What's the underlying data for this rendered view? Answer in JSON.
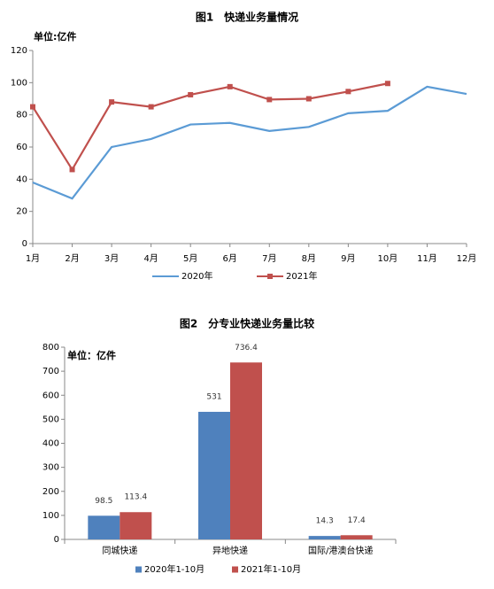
{
  "chart_data": [
    {
      "type": "line",
      "title": "图1　快递业务量情况",
      "unit_label": "单位:亿件",
      "categories": [
        "1月",
        "2月",
        "3月",
        "4月",
        "5月",
        "6月",
        "7月",
        "8月",
        "9月",
        "10月",
        "11月",
        "12月"
      ],
      "series": [
        {
          "name": "2020年",
          "color": "#5b9bd5",
          "marker": "none",
          "values": [
            38,
            28,
            60,
            65,
            74,
            75,
            70,
            72.5,
            81,
            82.5,
            97.5,
            93
          ]
        },
        {
          "name": "2021年",
          "color": "#c0504d",
          "marker": "square",
          "values": [
            85,
            46,
            88,
            85,
            92.5,
            97.5,
            89.5,
            90,
            94.5,
            99.5,
            null,
            null
          ]
        }
      ],
      "ylim": [
        0,
        120
      ],
      "yticks": [
        0,
        20,
        40,
        60,
        80,
        100,
        120
      ],
      "grid": false
    },
    {
      "type": "bar",
      "title": "图2　分专业快递业务量比较",
      "unit_label": "单位：亿件",
      "categories": [
        "同城快递",
        "异地快递",
        "国际/港澳台快递"
      ],
      "series": [
        {
          "name": "2020年1-10月",
          "color": "#4f81bd",
          "values": [
            98.5,
            531,
            14.3
          ]
        },
        {
          "name": "2021年1-10月",
          "color": "#c0504d",
          "values": [
            113.4,
            736.4,
            17.4
          ]
        }
      ],
      "ylim": [
        0,
        800
      ],
      "yticks": [
        0,
        100,
        200,
        300,
        400,
        500,
        600,
        700,
        800
      ],
      "grid": false
    }
  ]
}
